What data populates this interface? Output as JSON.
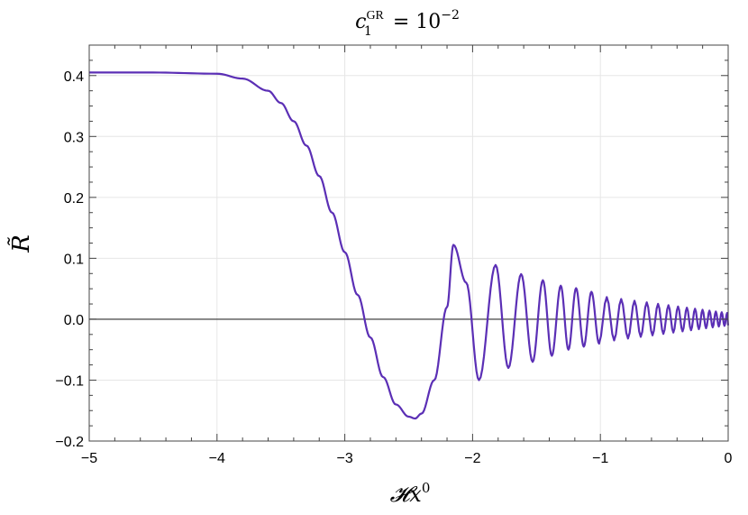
{
  "chart_data": {
    "type": "line",
    "title": "c_1^GR = 10^-2",
    "title_parts": {
      "symbol": "c",
      "subscript": "1",
      "superscript": "GR",
      "equals": "=",
      "base": "10",
      "exponent": "−2"
    },
    "xlabel": "𝓗x^0",
    "xlabel_parts": {
      "symbol": "𝓗x",
      "superscript": "0"
    },
    "ylabel": "R̃",
    "xlim": [
      -5,
      0
    ],
    "ylim": [
      -0.2,
      0.45
    ],
    "x_ticks": [
      -5,
      -4,
      -3,
      -2,
      -1,
      0
    ],
    "x_tick_labels": [
      "−5",
      "−4",
      "−3",
      "−2",
      "−1",
      "0"
    ],
    "y_ticks": [
      -0.2,
      -0.1,
      0.0,
      0.1,
      0.2,
      0.3,
      0.4
    ],
    "y_tick_labels": [
      "−0.2",
      "−0.1",
      "0.0",
      "0.1",
      "0.2",
      "0.3",
      "0.4"
    ],
    "grid": true,
    "series": [
      {
        "color": "#5b2fb5",
        "points": [
          [
            -5.0,
            0.405
          ],
          [
            -4.5,
            0.405
          ],
          [
            -4.0,
            0.403
          ],
          [
            -3.8,
            0.395
          ],
          [
            -3.6,
            0.375
          ],
          [
            -3.5,
            0.355
          ],
          [
            -3.4,
            0.325
          ],
          [
            -3.3,
            0.285
          ],
          [
            -3.2,
            0.235
          ],
          [
            -3.1,
            0.175
          ],
          [
            -3.0,
            0.11
          ],
          [
            -2.9,
            0.04
          ],
          [
            -2.8,
            -0.03
          ],
          [
            -2.7,
            -0.095
          ],
          [
            -2.6,
            -0.14
          ],
          [
            -2.5,
            -0.16
          ],
          [
            -2.45,
            -0.163
          ],
          [
            -2.4,
            -0.155
          ],
          [
            -2.3,
            -0.1
          ],
          [
            -2.2,
            0.02
          ],
          [
            -2.15,
            0.122
          ],
          [
            -2.05,
            0.06
          ],
          [
            -1.95,
            -0.1
          ],
          [
            -1.82,
            0.089
          ],
          [
            -1.72,
            -0.08
          ],
          [
            -1.62,
            0.074
          ],
          [
            -1.53,
            -0.07
          ],
          [
            -1.45,
            0.064
          ],
          [
            -1.38,
            -0.06
          ],
          [
            -1.31,
            0.055
          ],
          [
            -1.25,
            -0.05
          ],
          [
            -1.19,
            0.051
          ],
          [
            -1.13,
            -0.045
          ],
          [
            -1.07,
            0.045
          ],
          [
            -1.01,
            -0.04
          ],
          [
            -0.5,
            0.03
          ],
          [
            0.0,
            0.01
          ]
        ]
      }
    ]
  }
}
